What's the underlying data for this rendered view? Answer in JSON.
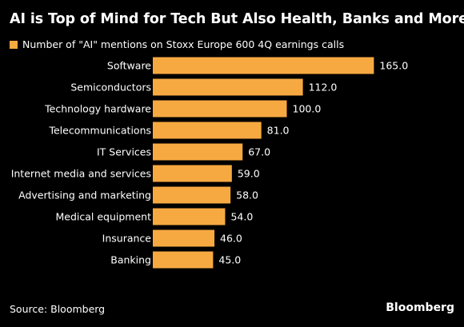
{
  "chart_data": {
    "type": "bar",
    "orientation": "horizontal",
    "title": "AI is Top of Mind for Tech But Also Health, Banks and More",
    "legend": "Number of \"AI\" mentions on Stoxx Europe 600 4Q earnings calls",
    "categories": [
      "Software",
      "Semiconductors",
      "Technology hardware",
      "Telecommunications",
      "IT Services",
      "Internet media and services",
      "Advertising and marketing",
      "Medical equipment",
      "Insurance",
      "Banking"
    ],
    "series": [
      {
        "name": "Number of \"AI\" mentions on Stoxx Europe 600 4Q earnings calls",
        "values": [
          165.0,
          112.0,
          100.0,
          81.0,
          67.0,
          59.0,
          58.0,
          54.0,
          46.0,
          45.0
        ]
      }
    ],
    "value_labels": [
      "165.0",
      "112.0",
      "100.0",
      "81.0",
      "67.0",
      "59.0",
      "58.0",
      "54.0",
      "46.0",
      "45.0"
    ],
    "color": "#f7a941",
    "grid": false,
    "legend_position": "top-left"
  },
  "footer": {
    "source": "Source: Bloomberg",
    "brand": "Bloomberg"
  }
}
